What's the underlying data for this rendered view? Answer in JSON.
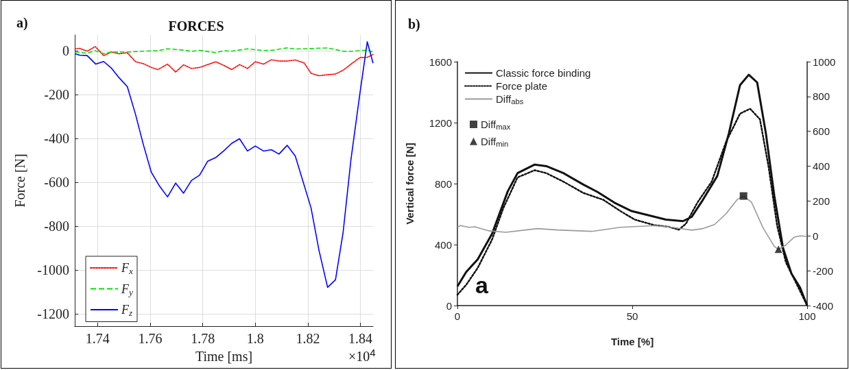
{
  "chart_data": [
    {
      "type": "line",
      "title": "FORCES",
      "xlabel": "Time [ms]",
      "ylabel": "Force [N]",
      "annotations": [
        "a)",
        "×10$^{4}$"
      ],
      "xlim": [
        1.7313,
        1.8448
      ],
      "ylim": [
        -1255,
        72
      ],
      "xticks": [
        1.74,
        1.76,
        1.78,
        1.8,
        1.82,
        1.84
      ],
      "yticks": [
        -1200,
        -1000,
        -800,
        -600,
        -400,
        -200,
        0
      ],
      "grid": true,
      "legend": "bottom left",
      "marker": "none",
      "series": [
        {
          "name": "F$_{x}$",
          "color": "#ff0000",
          "line_style": "dotted",
          "x": [
            1.7314,
            1.7331,
            1.736,
            1.7391,
            1.7423,
            1.7453,
            1.7481,
            1.7513,
            1.7544,
            1.7574,
            1.7604,
            1.7629,
            1.7666,
            1.7697,
            1.7727,
            1.7757,
            1.7788,
            1.7819,
            1.7849,
            1.788,
            1.791,
            1.794,
            1.797,
            1.8,
            1.8031,
            1.8061,
            1.809,
            1.8121,
            1.8152,
            1.8186,
            1.8212,
            1.8242,
            1.8275,
            1.8305,
            1.8334,
            1.8364,
            1.8398,
            1.8426,
            1.8448
          ],
          "values": [
            8,
            11,
            -2,
            19,
            -22,
            -6,
            -14,
            -9,
            -50,
            -59,
            -76,
            -86,
            -61,
            -97,
            -64,
            -81,
            -76,
            -63,
            -50,
            -67,
            -86,
            -63,
            -81,
            -50,
            -61,
            -41,
            -47,
            -47,
            -42,
            -56,
            -103,
            -114,
            -109,
            -106,
            -89,
            -61,
            -31,
            -30,
            -17
          ]
        },
        {
          "name": "F$_{y}$",
          "color": "#00e000",
          "line_style": "dashed",
          "x": [
            1.7314,
            1.736,
            1.7391,
            1.7423,
            1.7453,
            1.7513,
            1.7574,
            1.7629,
            1.7666,
            1.7727,
            1.7757,
            1.7788,
            1.7849,
            1.788,
            1.791,
            1.797,
            1.8028,
            1.8061,
            1.8121,
            1.8152,
            1.8212,
            1.8275,
            1.8334,
            1.8364,
            1.8426,
            1.8448
          ],
          "values": [
            -6,
            -11,
            0,
            -13,
            -6,
            -6,
            -2,
            0,
            9,
            3,
            -3,
            2,
            -9,
            0,
            -2,
            9,
            1,
            2,
            13,
            8,
            10,
            13,
            -2,
            -3,
            3,
            -6
          ]
        },
        {
          "name": "F$_{z}$",
          "color": "#0000ff",
          "line_style": "solid",
          "x": [
            1.7314,
            1.7332,
            1.736,
            1.7393,
            1.7423,
            1.7453,
            1.7481,
            1.7513,
            1.7544,
            1.7574,
            1.7604,
            1.7634,
            1.7666,
            1.7697,
            1.7727,
            1.7757,
            1.7788,
            1.7819,
            1.7849,
            1.788,
            1.791,
            1.794,
            1.797,
            1.8,
            1.8031,
            1.8061,
            1.809,
            1.8121,
            1.8152,
            1.8212,
            1.8242,
            1.8275,
            1.8305,
            1.8334,
            1.8364,
            1.8398,
            1.8426,
            1.8448
          ],
          "values": [
            -14,
            -20,
            -22,
            -61,
            -49,
            -80,
            -122,
            -164,
            -289,
            -428,
            -553,
            -614,
            -666,
            -603,
            -649,
            -591,
            -567,
            -503,
            -487,
            -456,
            -422,
            -401,
            -457,
            -434,
            -457,
            -451,
            -471,
            -431,
            -480,
            -716,
            -908,
            -1078,
            -1044,
            -828,
            -494,
            -194,
            41,
            -57
          ]
        }
      ]
    },
    {
      "type": "line",
      "xlabel": "Time [%]",
      "ylabel": "Vertical force [N]",
      "annotations": [
        "b)",
        "a"
      ],
      "xlim": [
        0,
        100
      ],
      "ylim": [
        0,
        1600
      ],
      "y2lim": [
        -400,
        1000
      ],
      "xticks": [
        0,
        50,
        100
      ],
      "yticks": [
        0,
        400,
        800,
        1200,
        1600
      ],
      "y2ticks": [
        -400,
        -200,
        0,
        200,
        400,
        600,
        800,
        1000
      ],
      "grid": false,
      "legend": "top left",
      "series": [
        {
          "name": "Classic force binding",
          "color": "#111111",
          "line_style": "solid",
          "marker": "none",
          "x": [
            0,
            2.5,
            5.8,
            9.9,
            14.4,
            17.2,
            22.1,
            25.4,
            30.3,
            36,
            40,
            44.9,
            49.8,
            54.7,
            59.6,
            64.5,
            67,
            70.2,
            74.3,
            77.6,
            80.8,
            83.3,
            85.7,
            88.2,
            90.6,
            93.1,
            95.5,
            98,
            100
          ],
          "values": [
            126,
            220,
            303,
            471,
            750,
            869,
            925,
            915,
            869,
            794,
            746,
            675,
            620,
            592,
            564,
            554,
            582,
            694,
            850,
            1129,
            1446,
            1514,
            1464,
            1129,
            720,
            378,
            210,
            117,
            0
          ]
        },
        {
          "name": "Force plate",
          "color": "#111111",
          "line_style": "dotted",
          "marker": "none",
          "x": [
            0,
            2.5,
            5.8,
            9.9,
            13.1,
            17.2,
            22.1,
            25.4,
            30.3,
            36,
            41.7,
            46.6,
            50.7,
            56.4,
            60.4,
            63.3,
            65.3,
            68.6,
            72.7,
            76.8,
            80.8,
            83.7,
            86.5,
            89,
            91.4,
            93.9,
            97.1,
            100
          ],
          "values": [
            71,
            136,
            247,
            433,
            638,
            841,
            888,
            869,
            813,
            739,
            694,
            620,
            564,
            527,
            517,
            498,
            536,
            675,
            813,
            1073,
            1259,
            1291,
            1222,
            906,
            526,
            285,
            136,
            0
          ]
        },
        {
          "name": "Diff$_{abs}$",
          "color": "#999999",
          "line_style": "solid",
          "marker": "none",
          "axis": "y2",
          "x": [
            0,
            0.9,
            3.3,
            5,
            9,
            13.9,
            22.9,
            28.6,
            38.4,
            46.6,
            56.4,
            61.3,
            67,
            70.2,
            73.5,
            76.8,
            80,
            81.8,
            84.1,
            87.4,
            90.6,
            91.8,
            93.9,
            96.3,
            98,
            100
          ],
          "values": [
            51,
            59,
            49,
            52,
            29,
            21,
            42,
            34,
            26,
            49,
            59,
            49,
            33,
            42,
            65,
            127,
            209,
            229,
            193,
            46,
            -60,
            -77,
            -52,
            -7,
            0,
            -3
          ]
        },
        {
          "name": "Diff$_{max}$",
          "type": "scatter",
          "color": "#111111",
          "marker": "square",
          "axis": "y2",
          "x": [
            81.8
          ],
          "values": [
            229
          ]
        },
        {
          "name": "Diff$_{min}$",
          "type": "scatter",
          "color": "#111111",
          "marker": "triangle",
          "axis": "y2",
          "x": [
            91.8
          ],
          "values": [
            -77
          ]
        }
      ]
    }
  ]
}
